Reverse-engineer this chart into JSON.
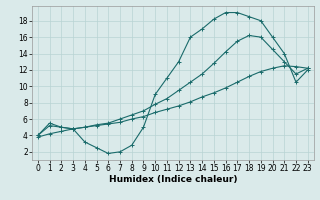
{
  "xlabel": "Humidex (Indice chaleur)",
  "background_color": "#daeaea",
  "grid_color": "#b8d4d4",
  "line_color": "#1a6b6b",
  "xlim": [
    -0.5,
    23.5
  ],
  "ylim": [
    1.0,
    19.8
  ],
  "yticks": [
    2,
    4,
    6,
    8,
    10,
    12,
    14,
    16,
    18
  ],
  "xticks": [
    0,
    1,
    2,
    3,
    4,
    5,
    6,
    7,
    8,
    9,
    10,
    11,
    12,
    13,
    14,
    15,
    16,
    17,
    18,
    19,
    20,
    21,
    22,
    23
  ],
  "line1_x": [
    0,
    1,
    2,
    3,
    4,
    5,
    6,
    7,
    8,
    9,
    10,
    11,
    12,
    13,
    14,
    15,
    16,
    17,
    18,
    19,
    20,
    21,
    22,
    23
  ],
  "line1_y": [
    4.0,
    5.5,
    5.0,
    4.8,
    3.2,
    2.5,
    1.8,
    2.0,
    2.8,
    5.0,
    9.0,
    11.0,
    13.0,
    16.0,
    17.0,
    18.2,
    19.0,
    19.0,
    18.5,
    18.0,
    16.0,
    14.0,
    10.5,
    12.0
  ],
  "line2_x": [
    0,
    1,
    2,
    3,
    4,
    5,
    6,
    7,
    8,
    9,
    10,
    11,
    12,
    13,
    14,
    15,
    16,
    17,
    18,
    19,
    20,
    21,
    22,
    23
  ],
  "line2_y": [
    4.0,
    5.2,
    5.0,
    4.8,
    5.0,
    5.3,
    5.5,
    6.0,
    6.5,
    7.0,
    7.8,
    8.5,
    9.5,
    10.5,
    11.5,
    12.8,
    14.2,
    15.5,
    16.2,
    16.0,
    14.5,
    13.0,
    11.5,
    12.2
  ],
  "line3_x": [
    0,
    1,
    2,
    3,
    4,
    5,
    6,
    7,
    8,
    9,
    10,
    11,
    12,
    13,
    14,
    15,
    16,
    17,
    18,
    19,
    20,
    21,
    22,
    23
  ],
  "line3_y": [
    3.8,
    4.2,
    4.5,
    4.8,
    5.0,
    5.2,
    5.4,
    5.6,
    6.0,
    6.3,
    6.8,
    7.2,
    7.6,
    8.1,
    8.7,
    9.2,
    9.8,
    10.5,
    11.2,
    11.8,
    12.2,
    12.5,
    12.4,
    12.2
  ],
  "tick_fontsize": 5.5,
  "xlabel_fontsize": 6.5,
  "marker_size": 2.5,
  "line_width": 0.8
}
